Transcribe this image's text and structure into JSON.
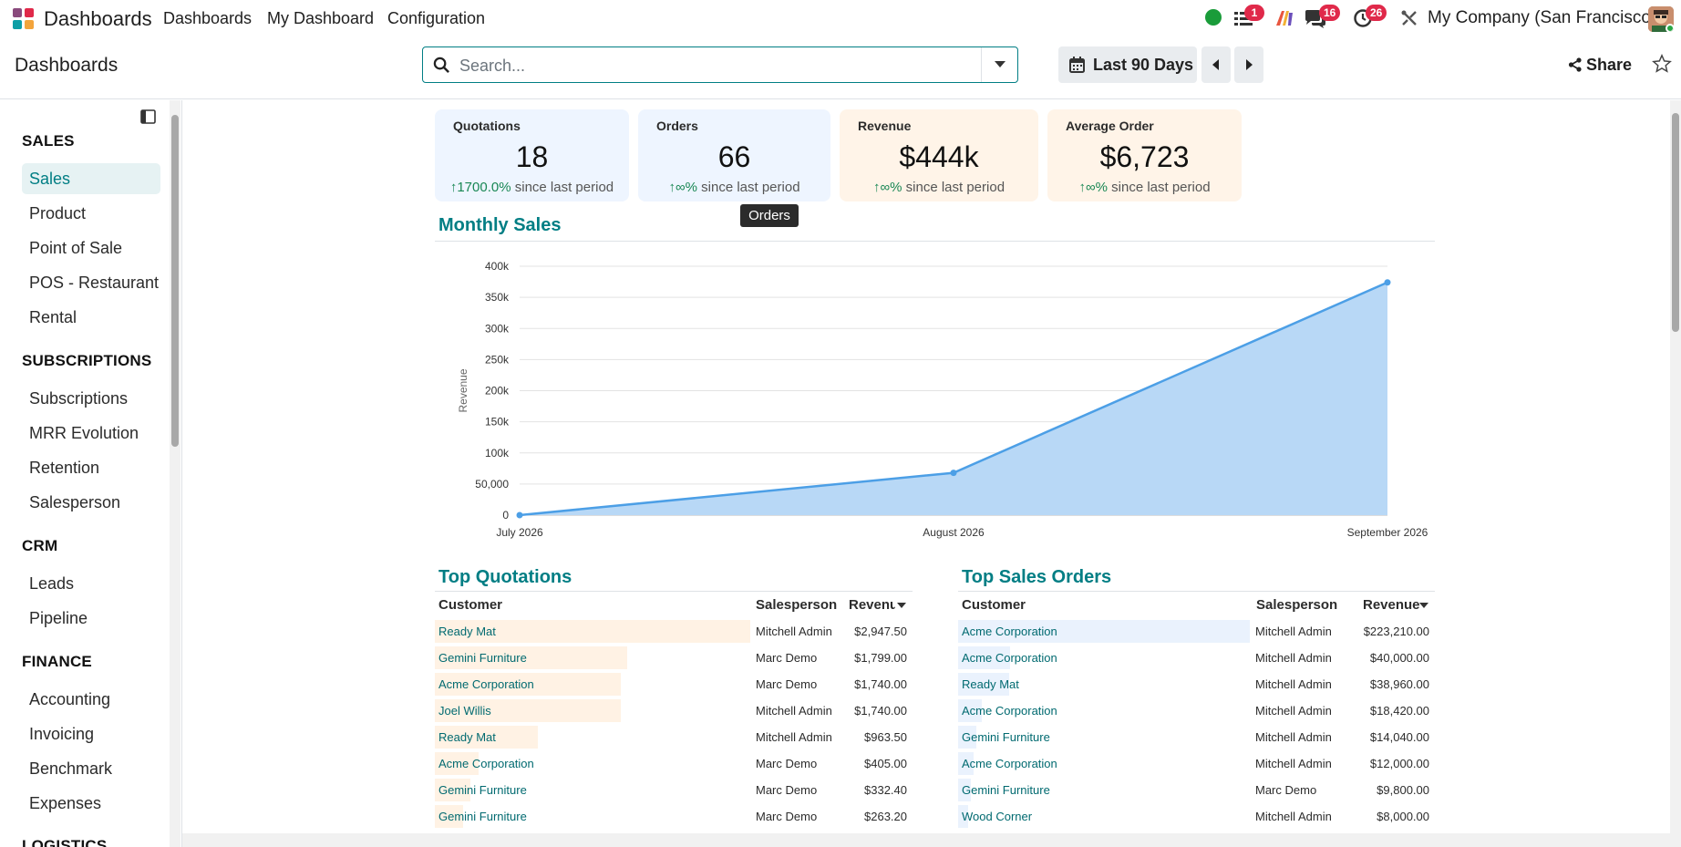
{
  "topbar": {
    "app_name": "Dashboards",
    "menus": [
      "Dashboards",
      "My Dashboard",
      "Configuration"
    ],
    "badges": {
      "activities": "1",
      "messages": "16",
      "clock": "26"
    },
    "company": "My Company (San Francisco)"
  },
  "control_panel": {
    "title": "Dashboards",
    "search_placeholder": "Search...",
    "date_filter": "Last 90 Days",
    "share_label": "Share"
  },
  "sidebar": {
    "sections": [
      {
        "title": "SALES",
        "items": [
          "Sales",
          "Product",
          "Point of Sale",
          "POS - Restaurant",
          "Rental"
        ]
      },
      {
        "title": "SUBSCRIPTIONS",
        "items": [
          "Subscriptions",
          "MRR Evolution",
          "Retention",
          "Salesperson"
        ]
      },
      {
        "title": "CRM",
        "items": [
          "Leads",
          "Pipeline"
        ]
      },
      {
        "title": "FINANCE",
        "items": [
          "Accounting",
          "Invoicing",
          "Benchmark",
          "Expenses"
        ]
      },
      {
        "title": "LOGISTICS",
        "items": []
      }
    ],
    "active_item": "Sales"
  },
  "kpis": [
    {
      "title": "Quotations",
      "value": "18",
      "change": "1700.0%",
      "suffix": "since last period",
      "bg": "#eef5ff"
    },
    {
      "title": "Orders",
      "value": "66",
      "change": "∞%",
      "suffix": "since last period",
      "bg": "#eef5ff"
    },
    {
      "title": "Revenue",
      "value": "$444k",
      "change": "∞%",
      "suffix": "since last period",
      "bg": "#fff4e8"
    },
    {
      "title": "Average Order",
      "value": "$6,723",
      "change": "∞%",
      "suffix": "since last period",
      "bg": "#fff4e8"
    }
  ],
  "tooltip": "Orders",
  "monthly_sales_title": "Monthly Sales",
  "chart_data": {
    "type": "area",
    "title": "",
    "ylabel": "Revenue",
    "xlabel": "",
    "x": [
      "July 2026",
      "August 2026",
      "September 2026"
    ],
    "series": [
      {
        "values": [
          0,
          68000,
          374000
        ]
      }
    ],
    "ylim": [
      0,
      400000
    ],
    "yticks": [
      "0",
      "50,000",
      "100k",
      "150k",
      "200k",
      "250k",
      "300k",
      "350k",
      "400k"
    ],
    "grid": true,
    "color": "#4c9fe6",
    "fill": "#b8d8f6"
  },
  "top_quotations": {
    "title": "Top Quotations",
    "columns": [
      "Customer",
      "Salesperson",
      "Revenue"
    ],
    "rows": [
      [
        "Ready Mat",
        "Mitchell Admin",
        "$2,947.50",
        2947.5
      ],
      [
        "Gemini Furniture",
        "Marc Demo",
        "$1,799.00",
        1799
      ],
      [
        "Acme Corporation",
        "Marc Demo",
        "$1,740.00",
        1740
      ],
      [
        "Joel Willis",
        "Mitchell Admin",
        "$1,740.00",
        1740
      ],
      [
        "Ready Mat",
        "Mitchell Admin",
        "$963.50",
        963.5
      ],
      [
        "Acme Corporation",
        "Marc Demo",
        "$405.00",
        405
      ],
      [
        "Gemini Furniture",
        "Marc Demo",
        "$332.40",
        332.4
      ],
      [
        "Gemini Furniture",
        "Marc Demo",
        "$263.20",
        263.2
      ]
    ]
  },
  "top_sales_orders": {
    "title": "Top Sales Orders",
    "columns": [
      "Customer",
      "Salesperson",
      "Revenue"
    ],
    "rows": [
      [
        "Acme Corporation",
        "Mitchell Admin",
        "$223,210.00",
        223210
      ],
      [
        "Acme Corporation",
        "Mitchell Admin",
        "$40,000.00",
        40000
      ],
      [
        "Ready Mat",
        "Mitchell Admin",
        "$38,960.00",
        38960
      ],
      [
        "Acme Corporation",
        "Mitchell Admin",
        "$18,420.00",
        18420
      ],
      [
        "Gemini Furniture",
        "Mitchell Admin",
        "$14,040.00",
        14040
      ],
      [
        "Acme Corporation",
        "Mitchell Admin",
        "$12,000.00",
        12000
      ],
      [
        "Gemini Furniture",
        "Marc Demo",
        "$9,800.00",
        9800
      ],
      [
        "Wood Corner",
        "Mitchell Admin",
        "$8,000.00",
        8000
      ]
    ]
  },
  "colors": {
    "accent": "#017e84",
    "badge": "#e0294a",
    "positive": "#198754"
  }
}
